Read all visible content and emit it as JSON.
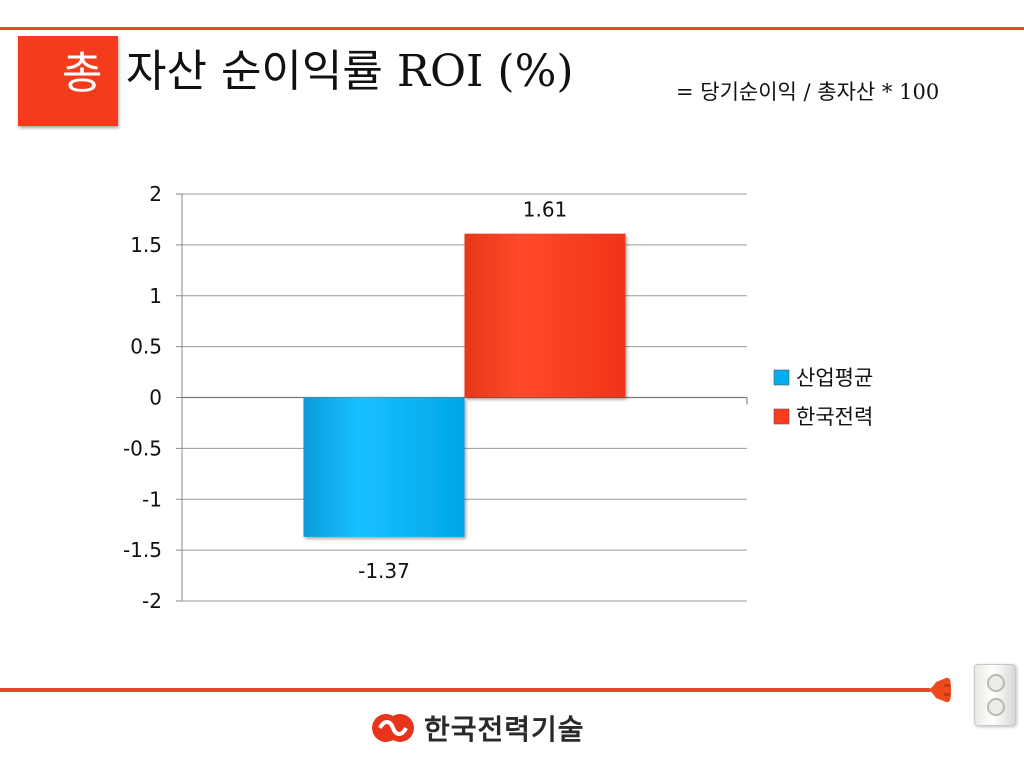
{
  "slide": {
    "title_badge": "총",
    "title_main": "자산 순이익률 ROI (%)",
    "title_formula": "= 당기순이익 / 총자산 * 100",
    "logo_text": "한국전력기술"
  },
  "colors": {
    "accent": "#e8462a",
    "badge": "#f23c1c",
    "series_industry": "#00b0f0",
    "series_kepco": "#ff3b1e"
  },
  "chart_data": {
    "type": "bar",
    "categories": [
      ""
    ],
    "series": [
      {
        "name": "산업평균",
        "values": [
          -1.37
        ],
        "labels": [
          "-1.37"
        ],
        "color": "#00b0f0"
      },
      {
        "name": "한국전력",
        "values": [
          1.61
        ],
        "labels": [
          "1.61"
        ],
        "color": "#ff3b1e"
      }
    ],
    "ylim": [
      -2,
      2
    ],
    "yticks": [
      2,
      1.5,
      1,
      0.5,
      0,
      -0.5,
      -1,
      -1.5,
      -2
    ],
    "ytick_labels": [
      "2",
      "1.5",
      "1",
      "0.5",
      "0",
      "-0.5",
      "-1",
      "-1.5",
      "-2"
    ],
    "grid": true,
    "legend": "right"
  }
}
